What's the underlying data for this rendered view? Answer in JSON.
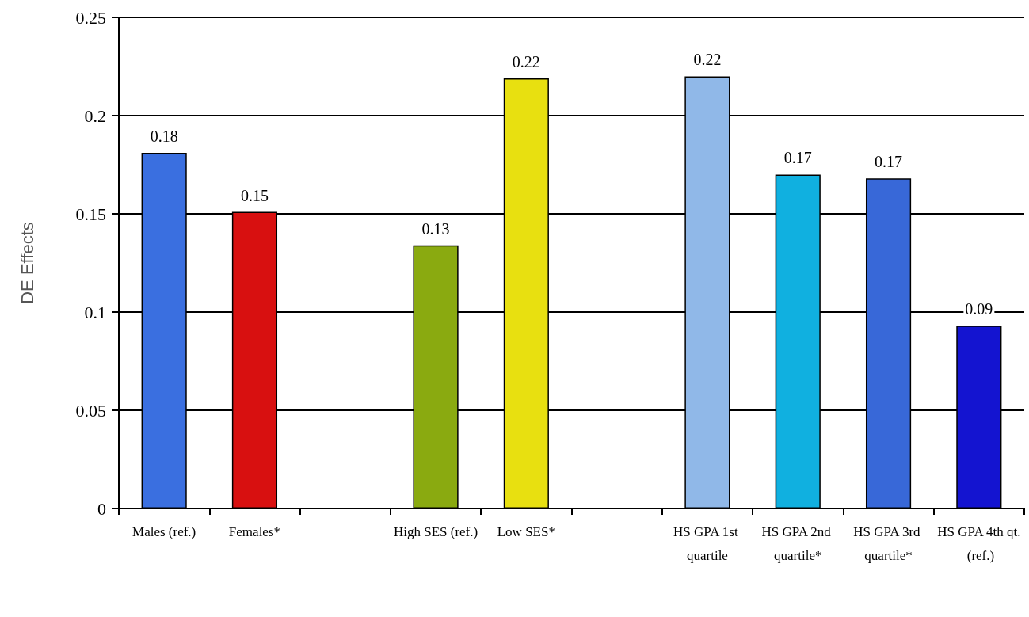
{
  "chart_data": {
    "type": "bar",
    "ylabel": "DE Effects",
    "categories": [
      "Males (ref.)",
      "Females*",
      null,
      "High SES (ref.)",
      "Low SES*",
      null,
      "HS GPA 1st quartile",
      "HS GPA 2nd quartile*",
      "HS GPA 3rd quartile*",
      "HS GPA 4th qt. (ref.)"
    ],
    "values": [
      0.181,
      0.151,
      null,
      0.134,
      0.219,
      null,
      0.22,
      0.17,
      0.168,
      0.093
    ],
    "value_labels": [
      "0.18",
      "0.15",
      null,
      "0.13",
      "0.22",
      null,
      "0.22",
      "0.17",
      "0.17",
      "0.09"
    ],
    "colors": [
      "#3a6fe0",
      "#d81010",
      null,
      "#8aaa10",
      "#e8e010",
      null,
      "#90b8e8",
      "#10b0e0",
      "#3868d8",
      "#1414d0"
    ],
    "ylim": [
      0,
      0.25
    ],
    "yticks": [
      0,
      0.05,
      0.1,
      0.15,
      0.2,
      0.25
    ],
    "grid": "y"
  }
}
